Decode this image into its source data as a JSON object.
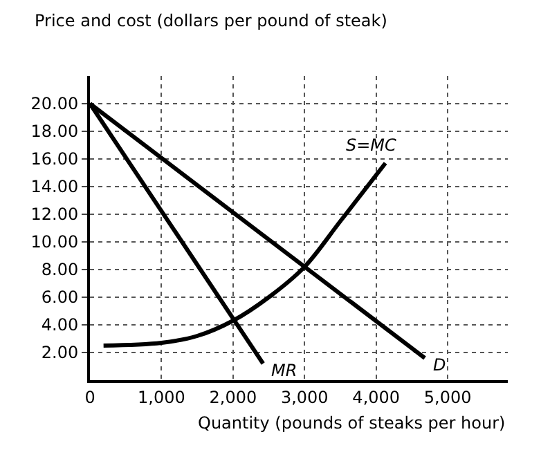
{
  "chart_data": {
    "type": "line",
    "ylabel": "Price and cost (dollars per pound of steak)",
    "xlabel": "Quantity (pounds of steaks per hour)",
    "xlim": [
      0,
      5840
    ],
    "ylim": [
      0,
      22
    ],
    "xticks": [
      {
        "value": 0,
        "label": "0"
      },
      {
        "value": 1000,
        "label": "1,000"
      },
      {
        "value": 2000,
        "label": "2,000"
      },
      {
        "value": 3000,
        "label": "3,000"
      },
      {
        "value": 4000,
        "label": "4,000"
      },
      {
        "value": 5000,
        "label": "5,000"
      }
    ],
    "yticks": [
      {
        "value": 2,
        "label": "2.00"
      },
      {
        "value": 4,
        "label": "4.00"
      },
      {
        "value": 6,
        "label": "6.00"
      },
      {
        "value": 8,
        "label": "8.00"
      },
      {
        "value": 10,
        "label": "10.00"
      },
      {
        "value": 12,
        "label": "12.00"
      },
      {
        "value": 14,
        "label": "14.00"
      },
      {
        "value": 16,
        "label": "16.00"
      },
      {
        "value": 18,
        "label": "18.00"
      },
      {
        "value": 20,
        "label": "20.00"
      }
    ],
    "grid": true,
    "legend": false,
    "marker": "none",
    "line_style": "solid",
    "series": [
      {
        "name": "MR",
        "color": "#000000",
        "x": [
          0,
          2420
        ],
        "values": [
          20,
          1.2
        ]
      },
      {
        "name": "D",
        "color": "#000000",
        "x": [
          0,
          4680
        ],
        "values": [
          20,
          1.6
        ]
      },
      {
        "name": "S=MC",
        "color": "#000000",
        "x": [
          190,
          1000,
          1500,
          2000,
          2500,
          3000,
          3500,
          4130
        ],
        "values": [
          2.5,
          2.7,
          3.2,
          4.3,
          6.0,
          8.2,
          11.5,
          15.7
        ]
      }
    ]
  }
}
